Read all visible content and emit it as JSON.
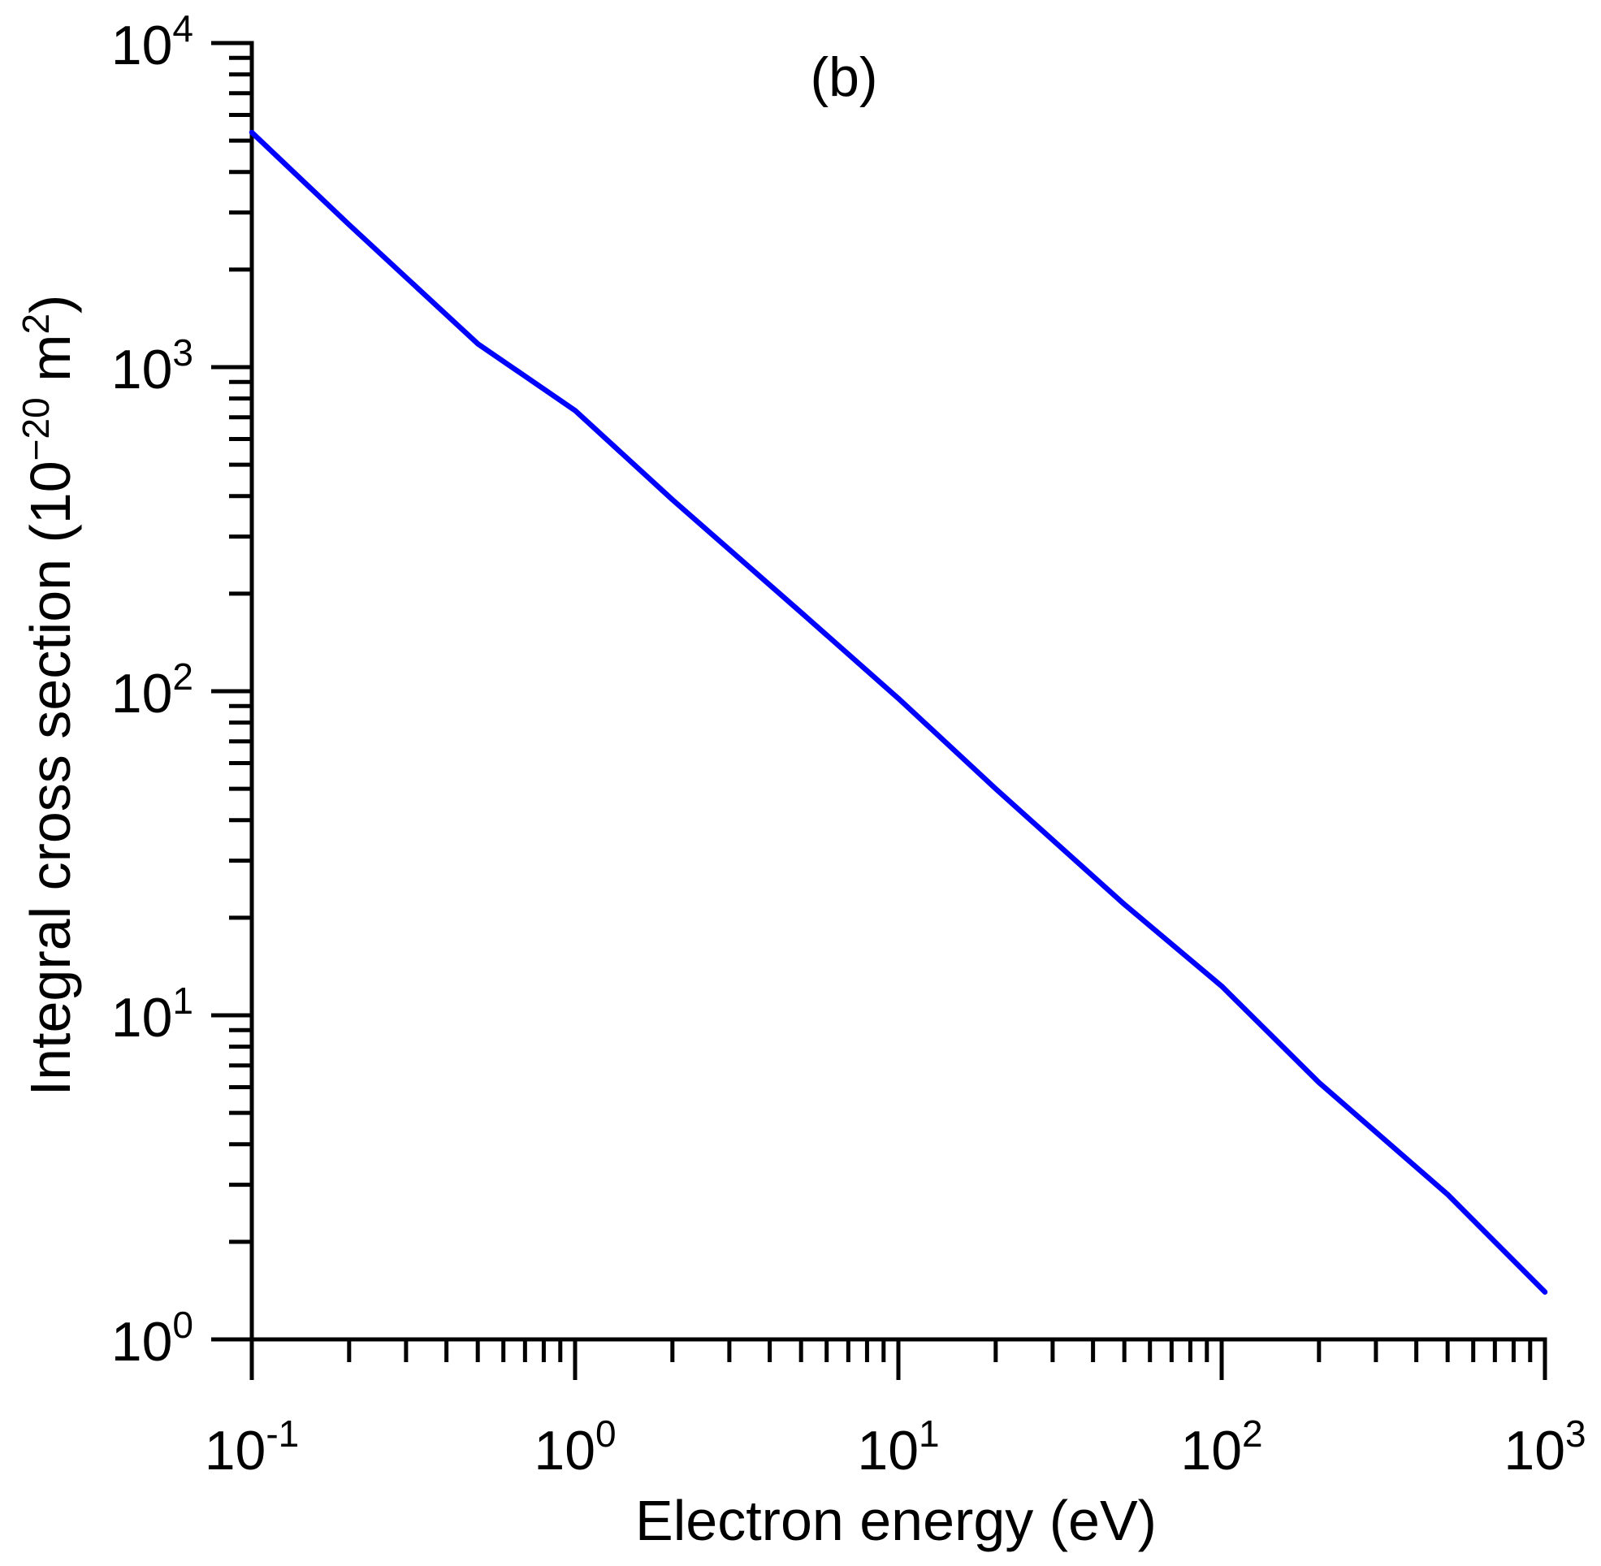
{
  "chart_data": {
    "type": "line",
    "title": "(b)",
    "xlabel": "Electron energy (eV)",
    "ylabel_parts": [
      {
        "text": "Integral cross section (10",
        "sup": false
      },
      {
        "text": "−20",
        "sup": true
      },
      {
        "text": " m",
        "sup": false
      },
      {
        "text": "2",
        "sup": true
      },
      {
        "text": ")",
        "sup": false
      }
    ],
    "x_log": true,
    "y_log": true,
    "xlim": [
      0.1,
      1000
    ],
    "ylim": [
      1,
      10000
    ],
    "minor_ticks": true,
    "grid": false,
    "x_ticks": [
      {
        "value": 0.1,
        "base": "10",
        "exp": "-1"
      },
      {
        "value": 1,
        "base": "10",
        "exp": "0"
      },
      {
        "value": 10,
        "base": "10",
        "exp": "1"
      },
      {
        "value": 100,
        "base": "10",
        "exp": "2"
      },
      {
        "value": 1000,
        "base": "10",
        "exp": "3"
      }
    ],
    "y_ticks": [
      {
        "value": 1,
        "base": "10",
        "exp": "0"
      },
      {
        "value": 10,
        "base": "10",
        "exp": "1"
      },
      {
        "value": 100,
        "base": "10",
        "exp": "2"
      },
      {
        "value": 1000,
        "base": "10",
        "exp": "3"
      },
      {
        "value": 10000,
        "base": "10",
        "exp": "4"
      }
    ],
    "series": [
      {
        "color": "#0000ff",
        "x": [
          0.1,
          0.2,
          0.5,
          1,
          2,
          5,
          10,
          20,
          50,
          100,
          200,
          500,
          1000
        ],
        "y": [
          5300,
          2750,
          1180,
          735,
          390,
          175,
          95,
          50,
          22,
          12.3,
          6.2,
          2.8,
          1.4
        ]
      }
    ]
  }
}
